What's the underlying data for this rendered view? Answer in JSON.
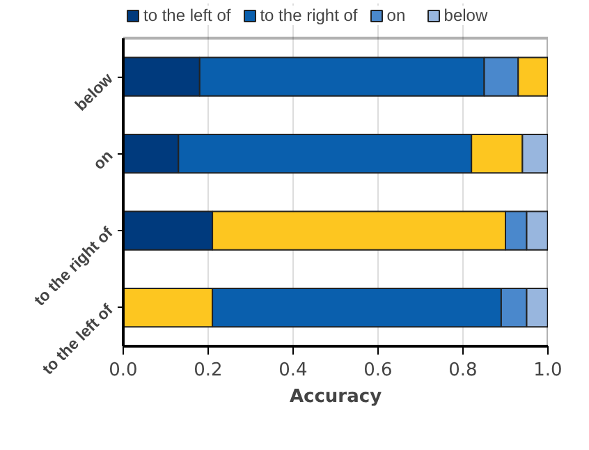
{
  "chart_data": {
    "type": "bar",
    "orientation": "horizontal",
    "stacked": true,
    "xlabel": "Accuracy",
    "categories": [
      "below",
      "on",
      "to the right of",
      "to the left of"
    ],
    "series": [
      {
        "name": "to the left of",
        "color": "#003a7d",
        "colors": [
          "#003a7d",
          "#003a7d",
          "#003a7d",
          "#fdc620"
        ],
        "values": [
          0.18,
          0.13,
          0.21,
          0.21
        ]
      },
      {
        "name": "to the right of",
        "color": "#0a5fad",
        "colors": [
          "#0a5fad",
          "#0a5fad",
          "#fdc620",
          "#0a5fad"
        ],
        "values": [
          0.67,
          0.69,
          0.69,
          0.68
        ]
      },
      {
        "name": "on",
        "color": "#4a88cc",
        "colors": [
          "#4a88cc",
          "#fdc620",
          "#4a88cc",
          "#4a88cc"
        ],
        "values": [
          0.08,
          0.12,
          0.05,
          0.06
        ]
      },
      {
        "name": "below",
        "color": "#98b6de",
        "colors": [
          "#fdc620",
          "#98b6de",
          "#98b6de",
          "#98b6de"
        ],
        "values": [
          0.07,
          0.06,
          0.05,
          0.05
        ]
      }
    ],
    "xlim": [
      0,
      1
    ],
    "xticks": [
      {
        "value": 0,
        "label": "0.0"
      },
      {
        "value": 0.2,
        "label": "0.2"
      },
      {
        "value": 0.4,
        "label": "0.4"
      },
      {
        "value": 0.6,
        "label": "0.6"
      },
      {
        "value": 0.8,
        "label": "0.8"
      },
      {
        "value": 1,
        "label": "1.0"
      }
    ],
    "grid": "x",
    "legend": "top"
  }
}
